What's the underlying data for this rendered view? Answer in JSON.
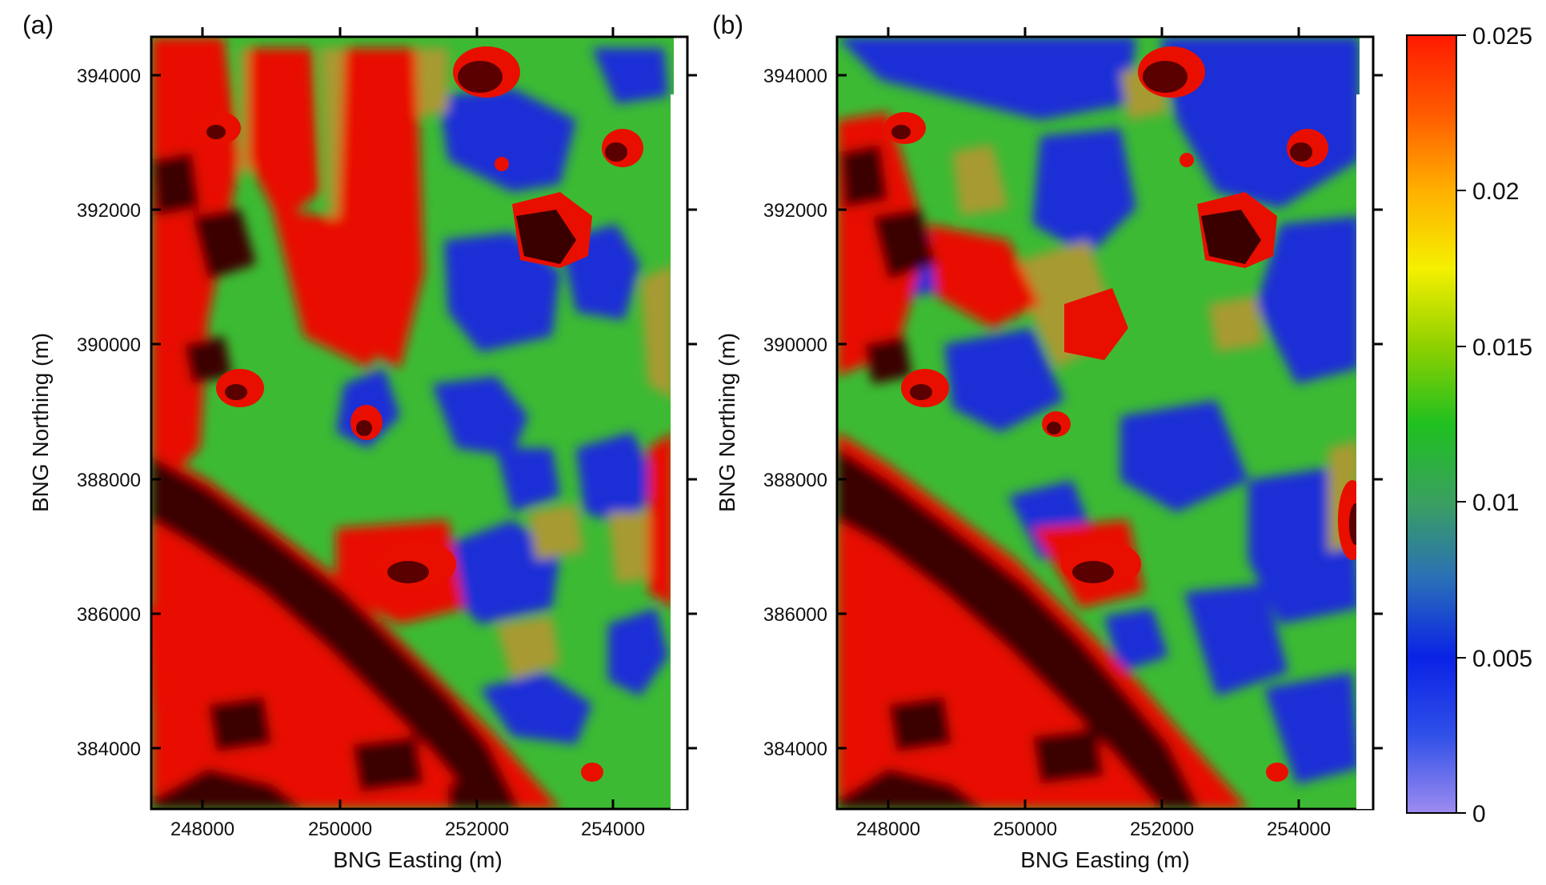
{
  "panels": [
    {
      "panel_label": "(a)",
      "xlabel": "BNG Easting (m)",
      "ylabel": "BNG Northing (m)",
      "xticks": [
        "248000",
        "250000",
        "252000",
        "254000"
      ],
      "yticks": [
        "394000",
        "392000",
        "390000",
        "388000",
        "386000",
        "384000"
      ]
    },
    {
      "panel_label": "(b)",
      "xlabel": "BNG Easting (m)",
      "ylabel": "BNG Northing (m)",
      "xticks": [
        "248000",
        "250000",
        "252000",
        "254000"
      ],
      "yticks": [
        "394000",
        "392000",
        "390000",
        "388000",
        "386000",
        "384000"
      ]
    }
  ],
  "colorbar": {
    "ticks": [
      "0.025",
      "0.02",
      "0.015",
      "0.01",
      "0.005",
      "0"
    ],
    "min": 0,
    "max": 0.025,
    "colors": [
      "#9d8cf0",
      "#3050e8",
      "#0a22e6",
      "#2a6fb8",
      "#3aa060",
      "#20c020",
      "#8fd000",
      "#f5f000",
      "#ffb000",
      "#ff5a00",
      "#ff1a00"
    ]
  },
  "chart_data": {
    "type": "heatmap",
    "x_range": [
      247200,
      255000
    ],
    "y_range": [
      383000,
      394600
    ],
    "value_range": [
      0,
      0.025
    ],
    "xlabel": "BNG Easting (m)",
    "ylabel": "BNG Northing (m)"
  },
  "palette": {
    "dark_red": "#3a0000",
    "red": "#e80f00",
    "olive": "#a89a30",
    "green": "#3cba33",
    "blue": "#1a2fd6"
  }
}
